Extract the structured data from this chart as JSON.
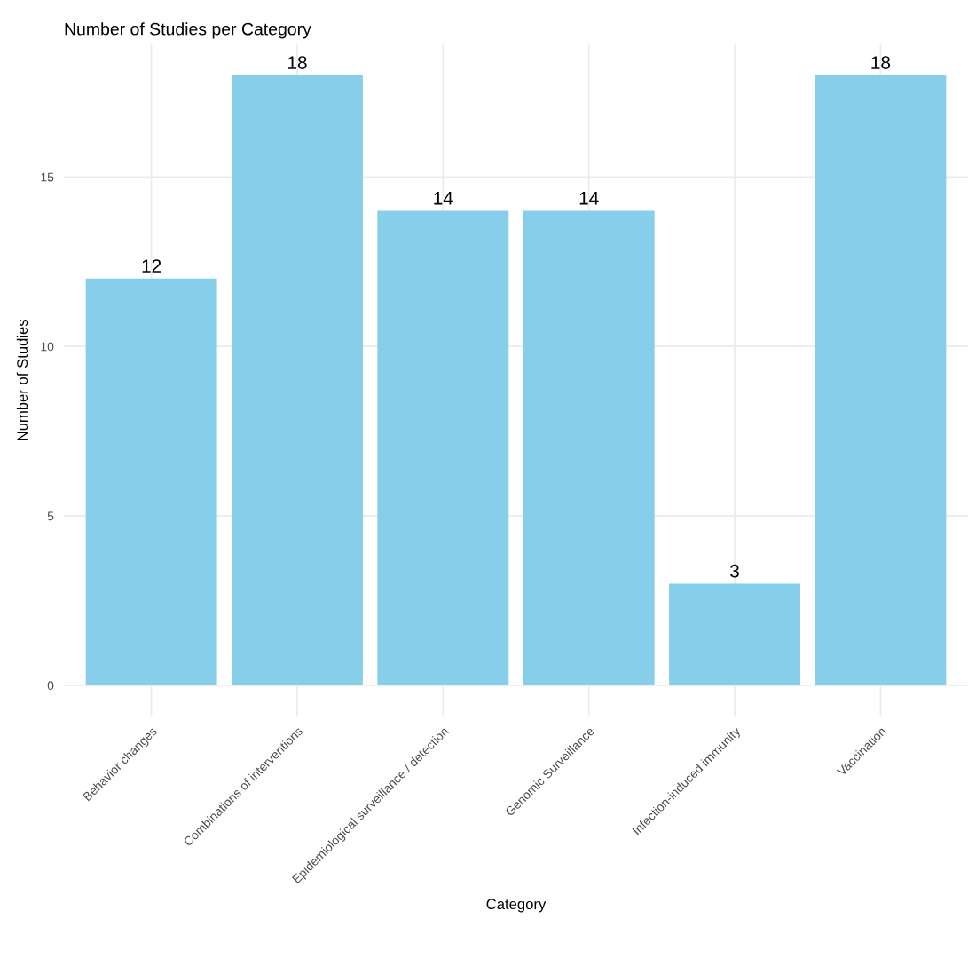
{
  "chart_data": {
    "type": "bar",
    "title": "Number of Studies per Category",
    "xlabel": "Category",
    "ylabel": "Number of Studies",
    "categories": [
      "Behavior changes",
      "Combinations of interventions",
      "Epidemiological surveillance / detection",
      "Genomic Surveillance",
      "Infection-induced immunity",
      "Vaccination"
    ],
    "values": [
      12,
      18,
      14,
      14,
      3,
      18
    ],
    "color": "#87ceeb",
    "ylim": [
      -0.9,
      18.9
    ],
    "yticks": [
      0,
      5,
      10,
      15
    ],
    "grid": true,
    "data_labels": true
  }
}
